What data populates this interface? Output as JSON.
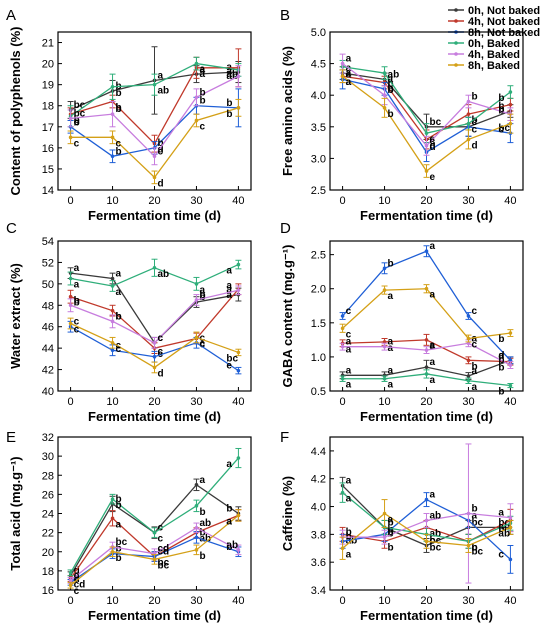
{
  "legend": {
    "placement": "top-right",
    "entries": [
      {
        "label": "0h, Not baked",
        "color": "#3a3a3a"
      },
      {
        "label": "4h, Not baked",
        "color": "#c0392b"
      },
      {
        "label": "8h, Not baked",
        "color": "#1f5fd6"
      },
      {
        "label": "0h, Baked",
        "color": "#2fae7a"
      },
      {
        "label": "4h, Baked",
        "color": "#c77dde"
      },
      {
        "label": "8h, Baked",
        "color": "#d4a017"
      }
    ]
  },
  "chart_data": [
    {
      "panel": "A",
      "type": "line",
      "xlabel": "Fermentation time (d)",
      "ylabel": "Content of polyphenols (%)",
      "x": [
        0,
        10,
        20,
        30,
        40
      ],
      "xlim": [
        -3,
        43
      ],
      "xticks": [
        0,
        10,
        20,
        30,
        40
      ],
      "ylim": [
        14,
        21.5
      ],
      "yticks": [
        14,
        15,
        16,
        17,
        18,
        19,
        20,
        21
      ],
      "series": [
        {
          "values": [
            17.8,
            18.7,
            19.2,
            19.5,
            19.6
          ],
          "errors": [
            0.4,
            0.5,
            1.6,
            0.4,
            0.5
          ],
          "labels": [
            "bc",
            "b",
            "a",
            "a",
            "a"
          ]
        },
        {
          "values": [
            17.6,
            18.2,
            16.2,
            19.8,
            19.8
          ],
          "errors": [
            0.3,
            0.3,
            0.4,
            0.5,
            0.9
          ],
          "labels": [
            "b",
            "b",
            "d",
            "a",
            "ab"
          ]
        },
        {
          "values": [
            17.0,
            15.6,
            16.0,
            18.0,
            17.9
          ],
          "errors": [
            0.3,
            0.3,
            0.3,
            0.4,
            0.9
          ],
          "labels": [
            "c",
            "b",
            "b",
            "b",
            "b"
          ]
        },
        {
          "values": [
            17.5,
            18.9,
            19.0,
            20.0,
            19.7
          ],
          "errors": [
            0.5,
            0.6,
            0.5,
            0.3,
            0.3
          ],
          "labels": [
            "b",
            "b",
            "ab",
            "a",
            "ab"
          ]
        },
        {
          "values": [
            17.4,
            17.6,
            15.6,
            18.4,
            19.4
          ],
          "errors": [
            0.4,
            0.6,
            0.4,
            0.4,
            0.5
          ],
          "labels": [
            "bc",
            "b",
            "c",
            "b",
            "a"
          ]
        },
        {
          "values": [
            16.5,
            16.5,
            14.6,
            17.3,
            17.9
          ],
          "errors": [
            0.3,
            0.3,
            0.3,
            0.3,
            0.4
          ],
          "labels": [
            "c",
            "c",
            "d",
            "c",
            "b"
          ]
        }
      ]
    },
    {
      "panel": "B",
      "type": "line",
      "xlabel": "Fermentation time (d)",
      "ylabel": "Free amino acids (%)",
      "x": [
        0,
        10,
        20,
        30,
        40
      ],
      "xlim": [
        -3,
        43
      ],
      "xticks": [
        0,
        10,
        20,
        30,
        40
      ],
      "ylim": [
        2.5,
        5.0
      ],
      "yticks": [
        2.5,
        3.0,
        3.5,
        4.0,
        4.5,
        5.0
      ],
      "series": [
        {
          "values": [
            4.35,
            4.25,
            3.5,
            3.5,
            3.75
          ],
          "errors": [
            0.1,
            0.1,
            0.2,
            0.15,
            0.1
          ],
          "labels": [
            "a",
            "ab",
            "bc",
            "c",
            "b"
          ]
        },
        {
          "values": [
            4.3,
            4.2,
            3.3,
            3.7,
            3.85
          ],
          "errors": [
            0.1,
            0.1,
            0.15,
            0.15,
            0.1
          ],
          "labels": [
            "a",
            "b",
            "c",
            "b",
            "b"
          ]
        },
        {
          "values": [
            4.25,
            4.1,
            3.1,
            3.5,
            3.4
          ],
          "errors": [
            0.15,
            0.1,
            0.15,
            0.15,
            0.15
          ],
          "labels": [
            "a",
            "b",
            "d",
            "c",
            "bc"
          ]
        },
        {
          "values": [
            4.45,
            4.35,
            3.4,
            3.55,
            4.05
          ],
          "errors": [
            0.1,
            0.1,
            0.15,
            0.1,
            0.1
          ],
          "labels": [
            "a",
            "a",
            "c",
            "c",
            "b"
          ]
        },
        {
          "values": [
            4.5,
            4.0,
            3.2,
            3.9,
            3.7
          ],
          "errors": [
            0.15,
            0.15,
            0.15,
            0.1,
            0.1
          ],
          "labels": [
            "a",
            "b",
            "c",
            "b",
            "b"
          ]
        },
        {
          "values": [
            4.3,
            3.8,
            2.8,
            3.3,
            3.55
          ],
          "errors": [
            0.1,
            0.15,
            0.1,
            0.15,
            0.15
          ],
          "labels": [
            "a",
            "b",
            "e",
            "d",
            "c"
          ]
        }
      ]
    },
    {
      "panel": "C",
      "type": "line",
      "xlabel": "Fermentation time (d)",
      "ylabel": "Water extract (%)",
      "x": [
        0,
        10,
        20,
        30,
        40
      ],
      "xlim": [
        -3,
        43
      ],
      "xticks": [
        0,
        10,
        20,
        30,
        40
      ],
      "ylim": [
        40,
        54
      ],
      "yticks": [
        40,
        42,
        44,
        46,
        48,
        50,
        52,
        54
      ],
      "series": [
        {
          "values": [
            51.0,
            50.5,
            44.5,
            48.3,
            49.0
          ],
          "errors": [
            0.5,
            0.5,
            0.5,
            0.5,
            0.6
          ],
          "labels": [
            "a",
            "a",
            "c",
            "b",
            "a"
          ]
        },
        {
          "values": [
            48.8,
            47.5,
            44.0,
            44.9,
            49.5
          ],
          "errors": [
            0.6,
            0.5,
            0.5,
            0.5,
            0.5
          ],
          "labels": [
            "b",
            "b",
            "c",
            "c",
            "a"
          ]
        },
        {
          "values": [
            46.0,
            43.8,
            43.2,
            44.5,
            41.9
          ],
          "errors": [
            0.5,
            0.5,
            0.5,
            0.5,
            0.3
          ],
          "labels": [
            "c",
            "c",
            "c",
            "c",
            "e"
          ]
        },
        {
          "values": [
            50.5,
            49.8,
            51.5,
            50.0,
            51.8
          ],
          "errors": [
            0.6,
            0.5,
            0.8,
            0.6,
            0.4
          ],
          "labels": [
            "a",
            "a",
            "ab",
            "a",
            "a"
          ]
        },
        {
          "values": [
            48.0,
            46.5,
            44.5,
            48.5,
            49.4
          ],
          "errors": [
            0.6,
            0.6,
            0.5,
            0.5,
            0.4
          ],
          "labels": [
            "b",
            "b",
            "c",
            "b",
            "a"
          ]
        },
        {
          "values": [
            46.3,
            44.5,
            42.2,
            45.0,
            43.6
          ],
          "errors": [
            0.5,
            0.5,
            0.5,
            0.5,
            0.3
          ],
          "labels": [
            "c",
            "c",
            "d",
            "c",
            "bc"
          ]
        }
      ]
    },
    {
      "panel": "D",
      "type": "line",
      "xlabel": "Fermentation time (d)",
      "ylabel": "GABA content (mg.g⁻¹)",
      "x": [
        0,
        10,
        20,
        30,
        40
      ],
      "xlim": [
        -3,
        43
      ],
      "xticks": [
        0,
        10,
        20,
        30,
        40
      ],
      "ylim": [
        0.5,
        2.7
      ],
      "yticks": [
        0.5,
        1.0,
        1.5,
        2.0,
        2.5
      ],
      "series": [
        {
          "values": [
            0.73,
            0.73,
            0.85,
            0.72,
            0.95
          ],
          "errors": [
            0.05,
            0.05,
            0.1,
            0.05,
            0.05
          ],
          "labels": [
            "a",
            "a",
            "a",
            "a",
            "a"
          ]
        },
        {
          "values": [
            1.2,
            1.22,
            1.25,
            0.95,
            0.93
          ],
          "errors": [
            0.05,
            0.05,
            0.08,
            0.05,
            0.05
          ],
          "labels": [
            "a",
            "a",
            "a",
            "b",
            "b"
          ]
        },
        {
          "values": [
            1.6,
            2.3,
            2.55,
            1.6,
            0.95
          ],
          "errors": [
            0.05,
            0.08,
            0.08,
            0.05,
            0.05
          ],
          "labels": [
            "c",
            "b",
            "a",
            "c",
            "d"
          ]
        },
        {
          "values": [
            0.68,
            0.68,
            0.75,
            0.65,
            0.58
          ],
          "errors": [
            0.04,
            0.04,
            0.06,
            0.04,
            0.03
          ],
          "labels": [
            "a",
            "a",
            "a",
            "a",
            "b"
          ]
        },
        {
          "values": [
            1.15,
            1.15,
            1.1,
            1.2,
            0.88
          ],
          "errors": [
            0.05,
            0.05,
            0.05,
            0.05,
            0.05
          ],
          "labels": [
            "a",
            "a",
            "a",
            "a",
            "b"
          ]
        },
        {
          "values": [
            1.42,
            1.98,
            2.0,
            1.27,
            1.35
          ],
          "errors": [
            0.06,
            0.06,
            0.06,
            0.05,
            0.05
          ],
          "labels": [
            "c",
            "a",
            "a",
            "c",
            "b"
          ]
        }
      ]
    },
    {
      "panel": "E",
      "type": "line",
      "xlabel": "Fermentation time (d)",
      "ylabel": "Total acid (mg.g⁻¹)",
      "x": [
        0,
        10,
        20,
        30,
        40
      ],
      "xlim": [
        -3,
        43
      ],
      "xticks": [
        0,
        10,
        20,
        30,
        40
      ],
      "ylim": [
        16,
        32
      ],
      "yticks": [
        16,
        18,
        20,
        22,
        24,
        26,
        28,
        30,
        32
      ],
      "series": [
        {
          "values": [
            17.5,
            25.0,
            22.0,
            27.0,
            24.0
          ],
          "errors": [
            0.4,
            0.8,
            0.6,
            0.6,
            0.7
          ],
          "labels": [
            "d",
            "b",
            "c",
            "a",
            "b"
          ]
        },
        {
          "values": [
            17.2,
            23.5,
            19.5,
            22.0,
            23.8
          ],
          "errors": [
            0.3,
            0.8,
            0.5,
            0.5,
            0.6
          ],
          "labels": [
            "cd",
            "a",
            "bc",
            "ab",
            "a"
          ]
        },
        {
          "values": [
            16.8,
            19.8,
            19.5,
            21.5,
            20.0
          ],
          "errors": [
            0.3,
            0.5,
            0.5,
            0.6,
            0.5
          ],
          "labels": [
            "c",
            "b",
            "cd",
            "b",
            "b"
          ]
        },
        {
          "values": [
            17.8,
            25.5,
            22.0,
            24.8,
            29.8
          ],
          "errors": [
            0.3,
            0.5,
            0.5,
            0.6,
            1.0
          ],
          "labels": [
            "d",
            "b",
            "c",
            "b",
            "a"
          ]
        },
        {
          "values": [
            17.0,
            20.5,
            19.8,
            22.5,
            20.2
          ],
          "errors": [
            0.3,
            0.5,
            0.5,
            0.5,
            0.5
          ],
          "labels": [
            "c",
            "bc",
            "cd",
            "ab",
            "ab"
          ]
        },
        {
          "values": [
            16.5,
            20.0,
            19.2,
            20.2,
            23.8
          ],
          "errors": [
            0.3,
            0.5,
            0.5,
            0.5,
            0.6
          ],
          "labels": [
            "c",
            "b",
            "bc",
            "b",
            "a"
          ]
        }
      ]
    },
    {
      "panel": "F",
      "type": "line",
      "xlabel": "Fermentation time (d)",
      "ylabel": "Caffeine (%)",
      "x": [
        0,
        10,
        20,
        30,
        40
      ],
      "xlim": [
        -3,
        43
      ],
      "xticks": [
        0,
        10,
        20,
        30,
        40
      ],
      "ylim": [
        3.4,
        4.5
      ],
      "yticks": [
        3.4,
        3.6,
        3.8,
        4.0,
        4.2,
        4.4
      ],
      "series": [
        {
          "values": [
            4.15,
            3.85,
            3.72,
            3.85,
            3.85
          ],
          "errors": [
            0.06,
            0.05,
            0.05,
            0.05,
            0.05
          ],
          "labels": [
            "a",
            "b",
            "c",
            "bc",
            "bc"
          ]
        },
        {
          "values": [
            3.8,
            3.75,
            3.85,
            3.75,
            3.9
          ],
          "errors": [
            0.05,
            0.05,
            0.05,
            0.05,
            0.08
          ],
          "labels": [
            "ab",
            "b",
            "ab",
            "b",
            "ab"
          ]
        },
        {
          "values": [
            3.75,
            3.8,
            4.05,
            3.9,
            3.62
          ],
          "errors": [
            0.05,
            0.05,
            0.05,
            0.05,
            0.1
          ],
          "labels": [
            "b",
            "b",
            "a",
            "a",
            "c"
          ]
        },
        {
          "values": [
            4.1,
            3.85,
            3.8,
            3.75,
            3.88
          ],
          "errors": [
            0.07,
            0.05,
            0.05,
            0.05,
            0.05
          ],
          "labels": [
            "a",
            "b",
            "bc",
            "b",
            "b"
          ]
        },
        {
          "values": [
            3.78,
            3.78,
            3.9,
            3.95,
            3.92
          ],
          "errors": [
            0.05,
            0.05,
            0.05,
            0.5,
            0.1
          ],
          "labels": [
            "b",
            "b",
            "ab",
            "b",
            "a"
          ]
        },
        {
          "values": [
            3.7,
            3.95,
            3.75,
            3.72,
            3.85
          ],
          "errors": [
            0.08,
            0.1,
            0.05,
            0.05,
            0.05
          ],
          "labels": [
            "a",
            "a",
            "bc",
            "bc",
            "ab"
          ]
        }
      ]
    }
  ]
}
